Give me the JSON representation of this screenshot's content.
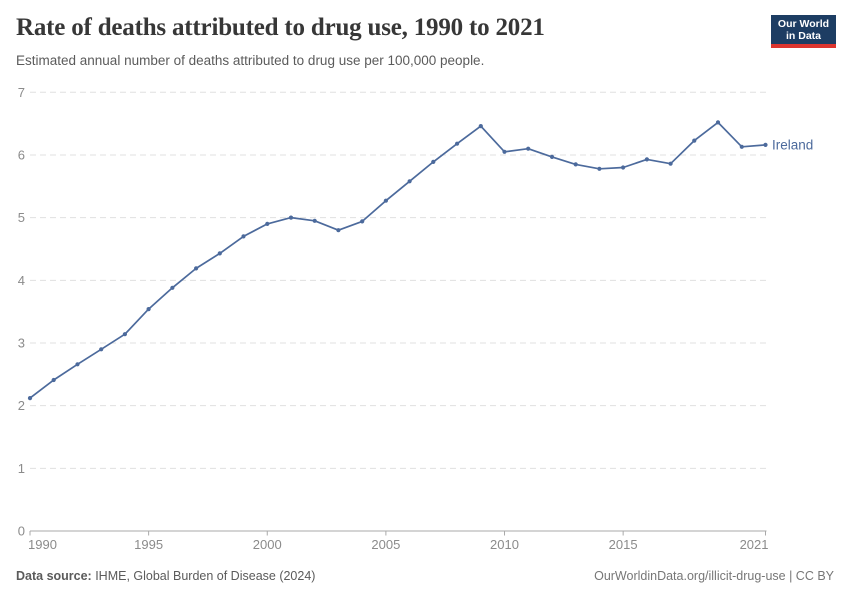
{
  "header": {
    "title": "Rate of deaths attributed to drug use, 1990 to 2021",
    "subtitle": "Estimated annual number of deaths attributed to drug use per 100,000 people.",
    "logo_line1": "Our World",
    "logo_line2": "in Data"
  },
  "chart_data": {
    "type": "line",
    "title": "Rate of deaths attributed to drug use, 1990 to 2021",
    "xlabel": "",
    "ylabel": "",
    "xlim": [
      1990,
      2021
    ],
    "ylim": [
      0,
      7
    ],
    "x_ticks": [
      1990,
      1995,
      2000,
      2005,
      2010,
      2015,
      2021
    ],
    "y_ticks": [
      0,
      1,
      2,
      3,
      4,
      5,
      6,
      7
    ],
    "grid": "horizontal-dashed",
    "legend_position": "end-of-line-label",
    "series": [
      {
        "name": "Ireland",
        "color": "#4c6a9c",
        "x": [
          1990,
          1991,
          1992,
          1993,
          1994,
          1995,
          1996,
          1997,
          1998,
          1999,
          2000,
          2001,
          2002,
          2003,
          2004,
          2005,
          2006,
          2007,
          2008,
          2009,
          2010,
          2011,
          2012,
          2013,
          2014,
          2015,
          2016,
          2017,
          2018,
          2019,
          2020,
          2021
        ],
        "values": [
          2.12,
          2.41,
          2.66,
          2.9,
          3.14,
          3.54,
          3.88,
          4.19,
          4.43,
          4.7,
          4.9,
          5.0,
          4.95,
          4.8,
          4.94,
          5.27,
          5.58,
          5.89,
          6.18,
          6.46,
          6.05,
          6.1,
          5.97,
          5.85,
          5.78,
          5.8,
          5.93,
          5.86,
          6.23,
          6.52,
          6.13,
          6.16
        ]
      }
    ]
  },
  "footer": {
    "source_bold": "Data source:",
    "source_rest": " IHME, Global Burden of Disease (2024)",
    "credit": "OurWorldinData.org/illicit-drug-use | CC BY"
  },
  "colors": {
    "line": "#4c6a9c",
    "end_label": "#4c6a9c",
    "logo_bg": "#1d3d63",
    "logo_stripe": "#dc352f",
    "grid": "#e0e0e0",
    "axis": "#a9a9a9",
    "tick_label": "#8b8b8b",
    "title": "#373737",
    "subtitle": "#5b5b5b"
  }
}
